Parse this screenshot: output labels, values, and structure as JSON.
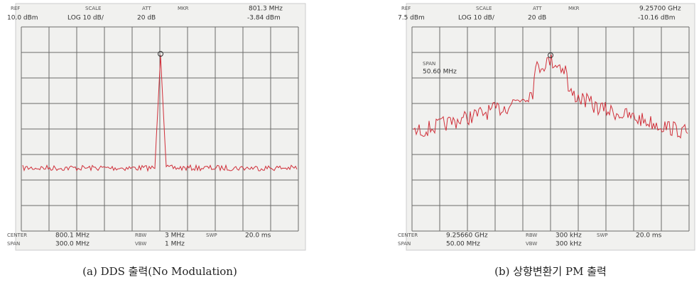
{
  "panels": [
    {
      "header": {
        "ref_label": "REF",
        "ref": "10.0 dBm",
        "scale_label": "SCALE",
        "scale": "LOG 10 dB/",
        "att_label": "ATT",
        "att": "20 dB",
        "mkr_label": "MKR",
        "mkr_freq": "801.3 MHz",
        "mkr_level": "-3.84 dBm"
      },
      "footer": {
        "center_label": "CENTER",
        "center": "800.1 MHz",
        "rbw_label": "RBW",
        "rbw": "3 MHz",
        "swp_label": "SWP",
        "swp": "20.0 ms",
        "span_label": "SPAN",
        "span": "300.0 MHz",
        "vbw_label": "VBW",
        "vbw": "1 MHz"
      },
      "caption": "(a) DDS 출력(No Modulation)"
    },
    {
      "header": {
        "ref_label": "REF",
        "ref": "7.5 dBm",
        "scale_label": "SCALE",
        "scale": "LOG 10 dB/",
        "att_label": "ATT",
        "att": "20 dB",
        "mkr_label": "MKR",
        "mkr_freq": "9.25700 GHz",
        "mkr_level": "-10.16 dBm"
      },
      "marker_note": {
        "label": "SPAN",
        "value": "50.60 MHz"
      },
      "footer": {
        "center_label": "CENTER",
        "center": "9.25660 GHz",
        "rbw_label": "RBW",
        "rbw": "300 kHz",
        "swp_label": "SWP",
        "swp": "20.0 ms",
        "span_label": "SPAN",
        "span": "50.00 MHz",
        "vbw_label": "VBW",
        "vbw": "300 kHz"
      },
      "caption": "(b) 상향변환기 PM 출력"
    }
  ]
}
